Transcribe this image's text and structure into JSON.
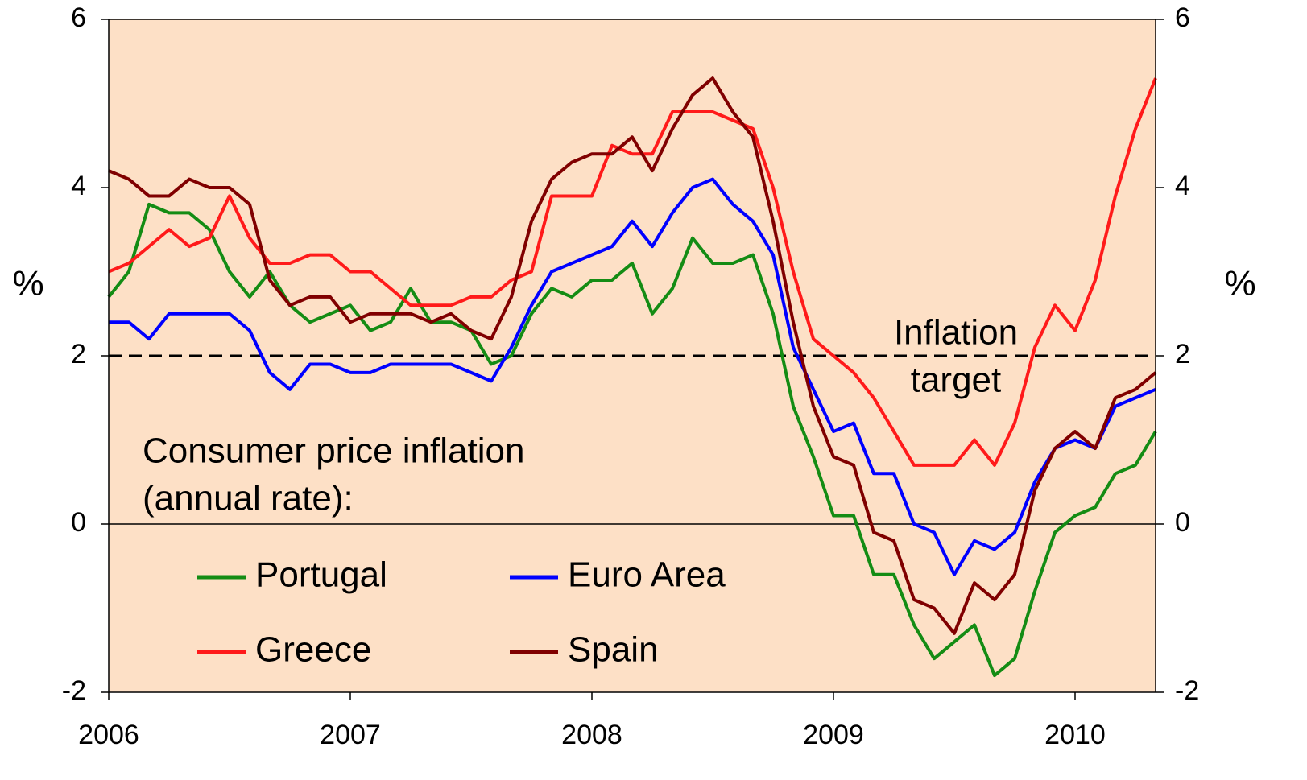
{
  "chart_data": {
    "type": "line",
    "categories": [
      "2006",
      null,
      null,
      null,
      null,
      null,
      null,
      null,
      null,
      null,
      null,
      null,
      "2007",
      null,
      null,
      null,
      null,
      null,
      null,
      null,
      null,
      null,
      null,
      null,
      "2008",
      null,
      null,
      null,
      null,
      null,
      null,
      null,
      null,
      null,
      null,
      null,
      "2009",
      null,
      null,
      null,
      null,
      null,
      null,
      null,
      null,
      null,
      null,
      null,
      "2010",
      null,
      null,
      null,
      null
    ],
    "ylabel": "%",
    "y2label": "%",
    "ylim": [
      -2,
      6
    ],
    "yticks": [
      -2,
      0,
      2,
      4,
      6
    ],
    "y2lim": [
      -2,
      6
    ],
    "y2ticks": [
      -2,
      0,
      2,
      4,
      6
    ],
    "annotation": "Consumer price inflation",
    "annotation2": "(annual rate):",
    "target": {
      "value": 2,
      "label": [
        "Inflation",
        "target"
      ]
    },
    "legend": "lower left",
    "background": "#fde0c6",
    "series": [
      {
        "name": "Portugal",
        "color": "#148c14",
        "values": [
          2.7,
          3.0,
          3.8,
          3.7,
          3.7,
          3.5,
          3.0,
          2.7,
          3.0,
          2.6,
          2.4,
          2.5,
          2.6,
          2.3,
          2.4,
          2.8,
          2.4,
          2.4,
          2.3,
          1.9,
          2.0,
          2.5,
          2.8,
          2.7,
          2.9,
          2.9,
          3.1,
          2.5,
          2.8,
          3.4,
          3.1,
          3.1,
          3.2,
          2.5,
          1.4,
          0.8,
          0.1,
          0.1,
          -0.6,
          -0.6,
          -1.2,
          -1.6,
          -1.4,
          -1.2,
          -1.8,
          -1.6,
          -0.8,
          -0.1,
          0.1,
          0.2,
          0.6,
          0.7,
          1.1
        ]
      },
      {
        "name": "Euro Area",
        "color": "#0000ff",
        "values": [
          2.4,
          2.4,
          2.2,
          2.5,
          2.5,
          2.5,
          2.5,
          2.3,
          1.8,
          1.6,
          1.9,
          1.9,
          1.8,
          1.8,
          1.9,
          1.9,
          1.9,
          1.9,
          1.8,
          1.7,
          2.1,
          2.6,
          3.0,
          3.1,
          3.2,
          3.3,
          3.6,
          3.3,
          3.7,
          4.0,
          4.1,
          3.8,
          3.6,
          3.2,
          2.1,
          1.6,
          1.1,
          1.2,
          0.6,
          0.6,
          0.0,
          -0.1,
          -0.6,
          -0.2,
          -0.3,
          -0.1,
          0.5,
          0.9,
          1.0,
          0.9,
          1.4,
          1.5,
          1.6
        ]
      },
      {
        "name": "Greece",
        "color": "#ff1a1a",
        "values": [
          3.0,
          3.1,
          3.3,
          3.5,
          3.3,
          3.4,
          3.9,
          3.4,
          3.1,
          3.1,
          3.2,
          3.2,
          3.0,
          3.0,
          2.8,
          2.6,
          2.6,
          2.6,
          2.7,
          2.7,
          2.9,
          3.0,
          3.9,
          3.9,
          3.9,
          4.5,
          4.4,
          4.4,
          4.9,
          4.9,
          4.9,
          4.8,
          4.7,
          4.0,
          3.0,
          2.2,
          2.0,
          1.8,
          1.5,
          1.1,
          0.7,
          0.7,
          0.7,
          1.0,
          0.7,
          1.2,
          2.1,
          2.6,
          2.3,
          2.9,
          3.9,
          4.7,
          5.3
        ]
      },
      {
        "name": "Spain",
        "color": "#800000",
        "values": [
          4.2,
          4.1,
          3.9,
          3.9,
          4.1,
          4.0,
          4.0,
          3.8,
          2.9,
          2.6,
          2.7,
          2.7,
          2.4,
          2.5,
          2.5,
          2.5,
          2.4,
          2.5,
          2.3,
          2.2,
          2.7,
          3.6,
          4.1,
          4.3,
          4.4,
          4.4,
          4.6,
          4.2,
          4.7,
          5.1,
          5.3,
          4.9,
          4.6,
          3.6,
          2.4,
          1.4,
          0.8,
          0.7,
          -0.1,
          -0.2,
          -0.9,
          -1.0,
          -1.3,
          -0.7,
          -0.9,
          -0.6,
          0.4,
          0.9,
          1.1,
          0.9,
          1.5,
          1.6,
          1.8
        ]
      }
    ]
  }
}
